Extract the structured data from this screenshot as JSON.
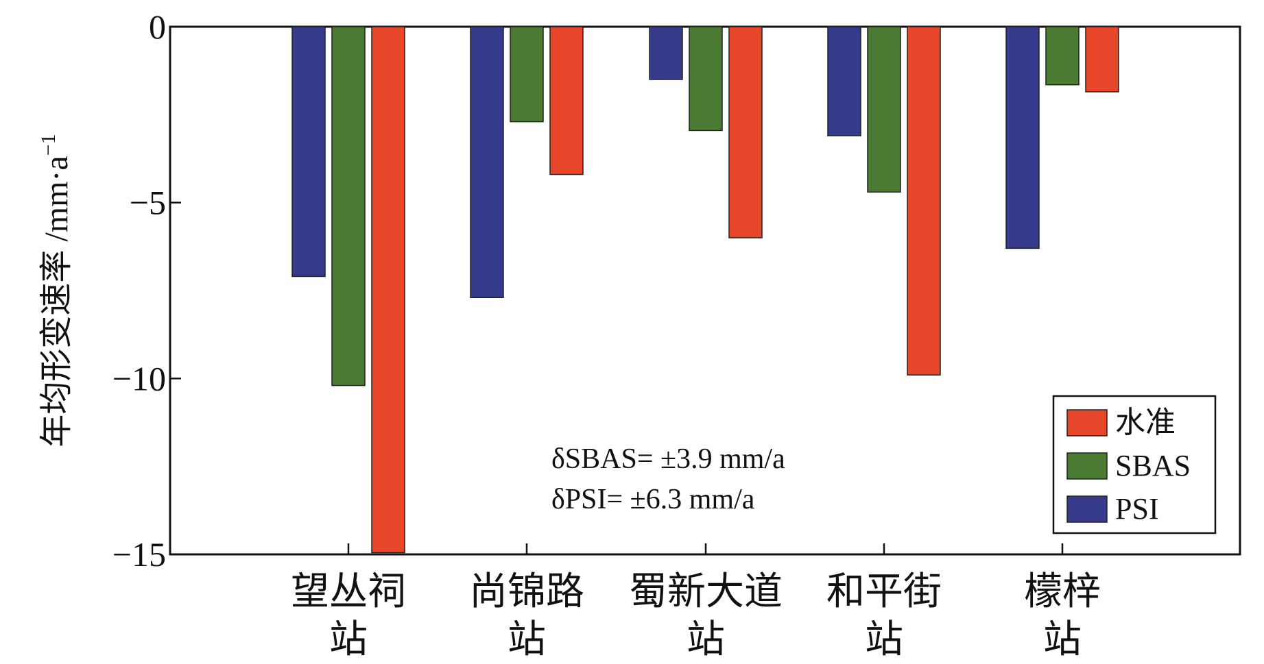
{
  "chart_data": {
    "type": "bar",
    "categories": [
      [
        "望丛祠",
        "站"
      ],
      [
        "尚锦路",
        "站"
      ],
      [
        "蜀新大道",
        "站"
      ],
      [
        "和平街",
        "站"
      ],
      [
        "檬梓",
        "站"
      ]
    ],
    "series": [
      {
        "name": "PSI",
        "color": "#353a8a",
        "values": [
          -7.1,
          -7.7,
          -1.5,
          -3.1,
          -6.3
        ]
      },
      {
        "name": "SBAS",
        "color": "#4b7a32",
        "values": [
          -10.2,
          -2.7,
          -2.95,
          -4.7,
          -1.65
        ]
      },
      {
        "name": "水准",
        "color": "#e8472b",
        "values": [
          -14.95,
          -4.2,
          -6.0,
          -9.9,
          -1.85
        ]
      }
    ],
    "ylabel": "年均形变速率 /mm·a",
    "ylabel_sup": "−1",
    "ylim": [
      -15,
      0
    ],
    "yticks": [
      {
        "value": 0,
        "label": "0"
      },
      {
        "value": -5,
        "label": "−5"
      },
      {
        "value": -10,
        "label": "−10"
      },
      {
        "value": -15,
        "label": "−15"
      }
    ],
    "legend_order": [
      "水准",
      "SBAS",
      "PSI"
    ],
    "legend_position": "bottom-right",
    "annotations": [
      "δSBAS= ±3.9 mm/a",
      "δPSI= ±6.3 mm/a"
    ],
    "grid": false
  }
}
